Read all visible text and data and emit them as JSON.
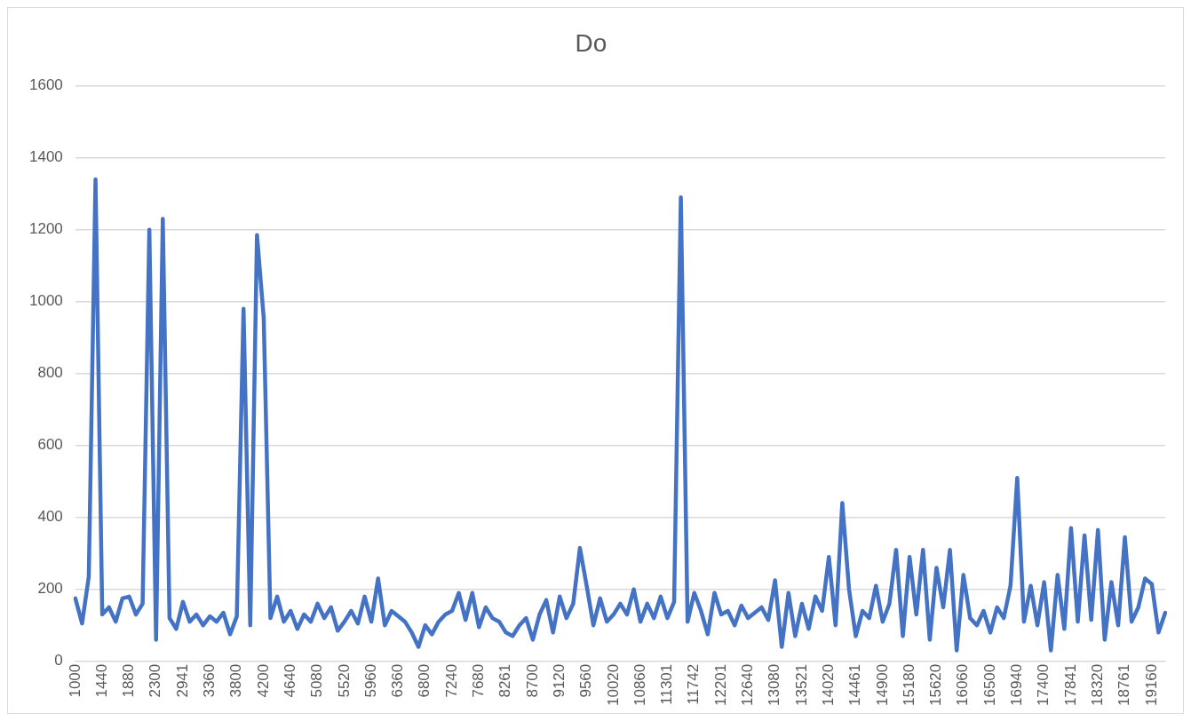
{
  "chart_data": {
    "type": "line",
    "title": "Do",
    "categories": [
      "1000",
      null,
      null,
      null,
      "1440",
      null,
      null,
      null,
      "1880",
      null,
      null,
      null,
      "2300",
      null,
      null,
      null,
      "2941",
      null,
      null,
      null,
      "3360",
      null,
      null,
      null,
      "3800",
      null,
      null,
      null,
      "4200",
      null,
      null,
      null,
      "4640",
      null,
      null,
      null,
      "5080",
      null,
      null,
      null,
      "5520",
      null,
      null,
      null,
      "5960",
      null,
      null,
      null,
      "6360",
      null,
      null,
      null,
      "6800",
      null,
      null,
      null,
      "7240",
      null,
      null,
      null,
      "7680",
      null,
      null,
      null,
      "8261",
      null,
      null,
      null,
      "8700",
      null,
      null,
      null,
      "9120",
      null,
      null,
      null,
      "9560",
      null,
      null,
      null,
      "10020",
      null,
      null,
      null,
      "10860",
      null,
      null,
      null,
      "11301",
      null,
      null,
      null,
      "11742",
      null,
      null,
      null,
      "12201",
      null,
      null,
      null,
      "12640",
      null,
      null,
      null,
      "13080",
      null,
      null,
      null,
      "13521",
      null,
      null,
      null,
      "14020",
      null,
      null,
      null,
      "14461",
      null,
      null,
      null,
      "14900",
      null,
      null,
      null,
      "15180",
      null,
      null,
      null,
      "15620",
      null,
      null,
      null,
      "16060",
      null,
      null,
      null,
      "16500",
      null,
      null,
      null,
      "16940",
      null,
      null,
      null,
      "17400",
      null,
      null,
      null,
      "17841",
      null,
      null,
      null,
      "18320",
      null,
      null,
      null,
      "18761",
      null,
      null,
      null,
      "19160",
      null,
      null
    ],
    "values": [
      175,
      105,
      235,
      1340,
      130,
      150,
      110,
      175,
      180,
      130,
      160,
      1200,
      60,
      1230,
      120,
      90,
      165,
      110,
      130,
      100,
      125,
      110,
      135,
      75,
      125,
      980,
      100,
      1185,
      955,
      120,
      180,
      110,
      140,
      90,
      130,
      110,
      160,
      120,
      150,
      85,
      110,
      140,
      105,
      180,
      110,
      230,
      100,
      140,
      125,
      110,
      80,
      40,
      100,
      75,
      110,
      130,
      140,
      190,
      115,
      190,
      95,
      150,
      120,
      110,
      80,
      70,
      100,
      120,
      60,
      130,
      170,
      80,
      180,
      120,
      160,
      315,
      210,
      100,
      175,
      110,
      130,
      160,
      130,
      200,
      110,
      160,
      120,
      180,
      120,
      165,
      1290,
      110,
      190,
      140,
      75,
      190,
      130,
      140,
      100,
      155,
      120,
      135,
      150,
      115,
      225,
      40,
      190,
      70,
      160,
      90,
      180,
      140,
      290,
      100,
      440,
      200,
      70,
      140,
      120,
      210,
      110,
      160,
      310,
      70,
      290,
      130,
      310,
      60,
      260,
      150,
      310,
      30,
      240,
      120,
      100,
      140,
      80,
      150,
      120,
      210,
      510,
      110,
      210,
      100,
      220,
      30,
      240,
      90,
      370,
      110,
      350,
      115,
      365,
      60,
      220,
      100,
      345,
      110,
      150,
      230,
      215,
      80,
      135
    ],
    "color": "#4472c4",
    "ylim": [
      0,
      1600
    ],
    "yticks": [
      0,
      200,
      400,
      600,
      800,
      1000,
      1200,
      1400,
      1600
    ],
    "grid": "y",
    "marker": "none",
    "line_style": "solid"
  }
}
